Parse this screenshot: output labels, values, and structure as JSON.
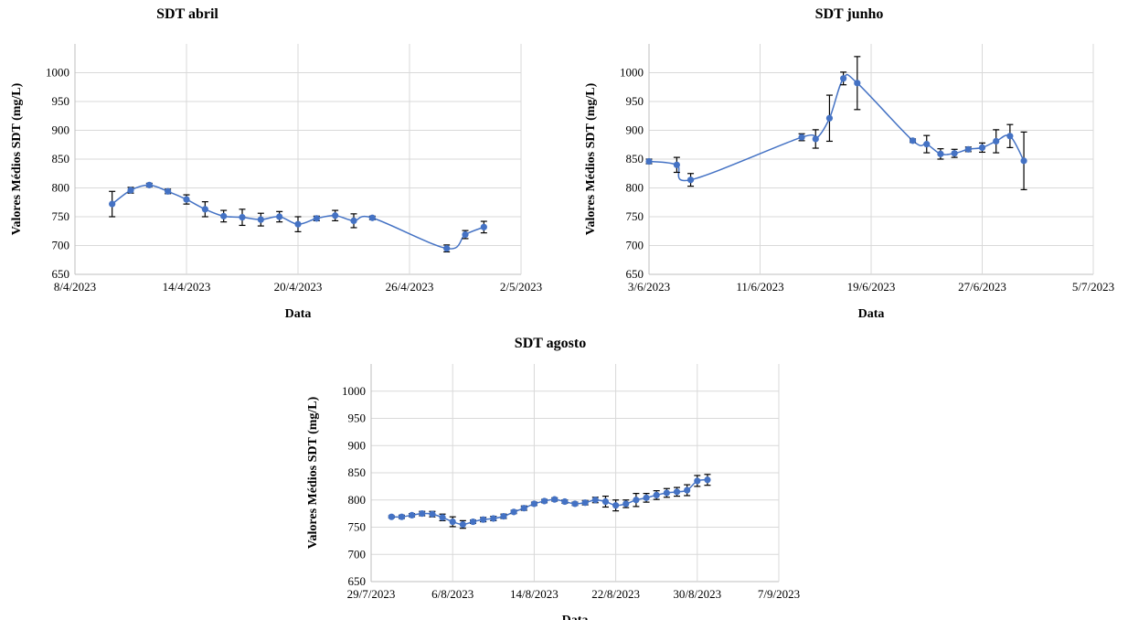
{
  "chart_data": [
    {
      "type": "line",
      "title": "SDT abril",
      "xlabel": "Data",
      "ylabel": "Valores Médios SDT (mg/L)",
      "ylim": [
        650,
        1000
      ],
      "yticks": [
        "650",
        "700",
        "750",
        "800",
        "850",
        "900",
        "950",
        "1000"
      ],
      "xlim": [
        "2023-04-08",
        "2023-05-02"
      ],
      "xtick_labels": [
        "8/4/2023",
        "14/4/2023",
        "20/4/2023",
        "26/4/2023",
        "2/5/2023"
      ],
      "grid": true,
      "color": "#4472c4",
      "series": [
        {
          "x": [
            "2023-04-10",
            "2023-04-11",
            "2023-04-12",
            "2023-04-13",
            "2023-04-14",
            "2023-04-15",
            "2023-04-16",
            "2023-04-17",
            "2023-04-18",
            "2023-04-19",
            "2023-04-20",
            "2023-04-21",
            "2023-04-22",
            "2023-04-23",
            "2023-04-24",
            "2023-04-28",
            "2023-04-29",
            "2023-04-30"
          ],
          "y": [
            772,
            796,
            805,
            794,
            780,
            763,
            751,
            749,
            745,
            750,
            737,
            747,
            752,
            743,
            748,
            695,
            719,
            732
          ],
          "err": [
            22,
            5,
            3,
            4,
            8,
            13,
            10,
            14,
            11,
            9,
            13,
            4,
            9,
            12,
            3,
            6,
            7,
            10
          ]
        }
      ]
    },
    {
      "type": "line",
      "title": "SDT junho",
      "xlabel": "Data",
      "ylabel": "Valores Médios SDT (mg/L)",
      "ylim": [
        650,
        1000
      ],
      "yticks": [
        "650",
        "700",
        "750",
        "800",
        "850",
        "900",
        "950",
        "1000"
      ],
      "xlim": [
        "2023-06-03",
        "2023-07-05"
      ],
      "xtick_labels": [
        "3/6/2023",
        "11/6/2023",
        "19/6/2023",
        "27/6/2023",
        "5/7/2023"
      ],
      "grid": true,
      "color": "#4472c4",
      "series": [
        {
          "x": [
            "2023-06-03",
            "2023-06-05",
            "2023-06-06",
            "2023-06-14",
            "2023-06-15",
            "2023-06-16",
            "2023-06-17",
            "2023-06-18",
            "2023-06-22",
            "2023-06-23",
            "2023-06-24",
            "2023-06-25",
            "2023-06-26",
            "2023-06-27",
            "2023-06-28",
            "2023-06-29",
            "2023-06-30"
          ],
          "y": [
            846,
            840,
            814,
            888,
            885,
            921,
            990,
            982,
            882,
            876,
            859,
            860,
            867,
            870,
            881,
            890,
            847
          ],
          "err": [
            4,
            13,
            11,
            6,
            16,
            40,
            11,
            46,
            3,
            15,
            9,
            7,
            4,
            8,
            20,
            20,
            50
          ]
        }
      ]
    },
    {
      "type": "line",
      "title": "SDT agosto",
      "xlabel": "Data",
      "ylabel": "Valores Médios SDT (mg/L)",
      "ylim": [
        650,
        1000
      ],
      "yticks": [
        "650",
        "700",
        "750",
        "800",
        "850",
        "900",
        "950",
        "1000"
      ],
      "xlim": [
        "2023-07-29",
        "2023-09-07"
      ],
      "xtick_labels": [
        "29/7/2023",
        "6/8/2023",
        "14/8/2023",
        "22/8/2023",
        "30/8/2023",
        "7/9/2023"
      ],
      "grid": true,
      "color": "#4472c4",
      "series": [
        {
          "x": [
            "2023-07-31",
            "2023-08-01",
            "2023-08-02",
            "2023-08-03",
            "2023-08-04",
            "2023-08-05",
            "2023-08-06",
            "2023-08-07",
            "2023-08-08",
            "2023-08-09",
            "2023-08-10",
            "2023-08-11",
            "2023-08-12",
            "2023-08-13",
            "2023-08-14",
            "2023-08-15",
            "2023-08-16",
            "2023-08-17",
            "2023-08-18",
            "2023-08-19",
            "2023-08-20",
            "2023-08-21",
            "2023-08-22",
            "2023-08-23",
            "2023-08-24",
            "2023-08-25",
            "2023-08-26",
            "2023-08-27",
            "2023-08-28",
            "2023-08-29",
            "2023-08-30",
            "2023-08-31"
          ],
          "y": [
            769,
            769,
            772,
            775,
            774,
            768,
            760,
            755,
            760,
            764,
            766,
            770,
            778,
            785,
            793,
            798,
            801,
            797,
            793,
            795,
            800,
            797,
            790,
            793,
            800,
            804,
            809,
            813,
            815,
            818,
            835,
            837
          ],
          "err": [
            2,
            3,
            3,
            4,
            5,
            6,
            9,
            7,
            3,
            4,
            4,
            4,
            3,
            4,
            3,
            3,
            3,
            3,
            3,
            4,
            5,
            10,
            10,
            7,
            12,
            8,
            8,
            8,
            8,
            10,
            10,
            10
          ]
        }
      ]
    }
  ]
}
